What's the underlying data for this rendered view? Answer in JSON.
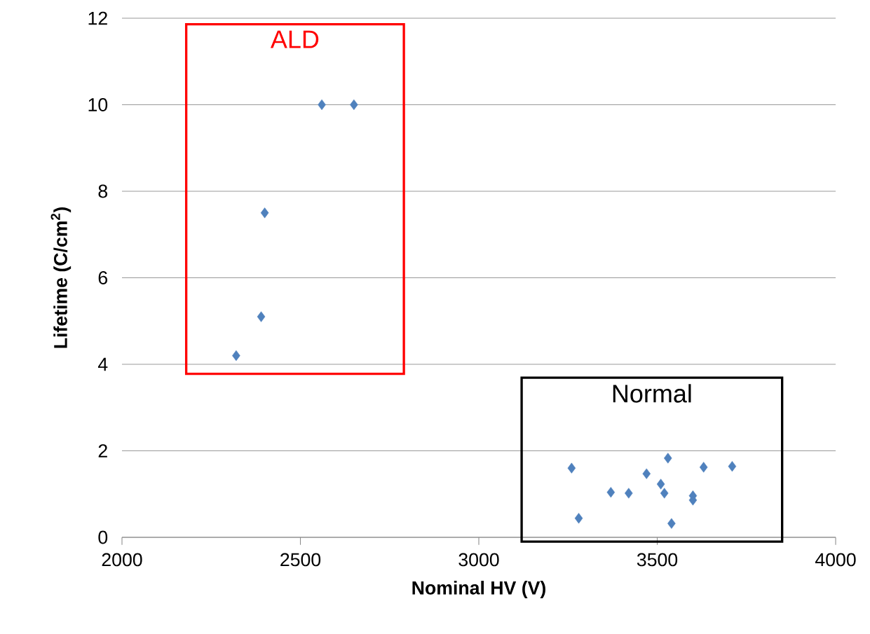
{
  "chart_data": {
    "type": "scatter",
    "xlabel": "Nominal HV (V)",
    "ylabel": "Lifetime (C/cm$^{2}$)",
    "series": [
      {
        "color": "#4f81bd",
        "x": [
          2560,
          2650,
          2400,
          2390,
          2320
        ],
        "values": [
          10.0,
          10.0,
          7.5,
          5.1,
          4.2
        ]
      },
      {
        "color": "#4f81bd",
        "x": [
          3260,
          3280,
          3370,
          3420,
          3470,
          3510,
          3520,
          3530,
          3540,
          3600,
          3600,
          3630,
          3710
        ],
        "values": [
          1.6,
          0.44,
          1.04,
          1.02,
          1.47,
          1.23,
          1.02,
          1.83,
          0.32,
          0.96,
          0.86,
          1.62,
          1.64
        ]
      }
    ],
    "annotations": [
      "ALD",
      "Normal"
    ],
    "xlim": [
      2000,
      4000
    ],
    "xticks": [
      2000,
      2500,
      3000,
      3500,
      4000
    ],
    "ylim": [
      0,
      12
    ],
    "yticks": [
      0,
      2,
      4,
      6,
      8,
      10,
      12
    ],
    "grid": "y",
    "marker": "diamond"
  }
}
